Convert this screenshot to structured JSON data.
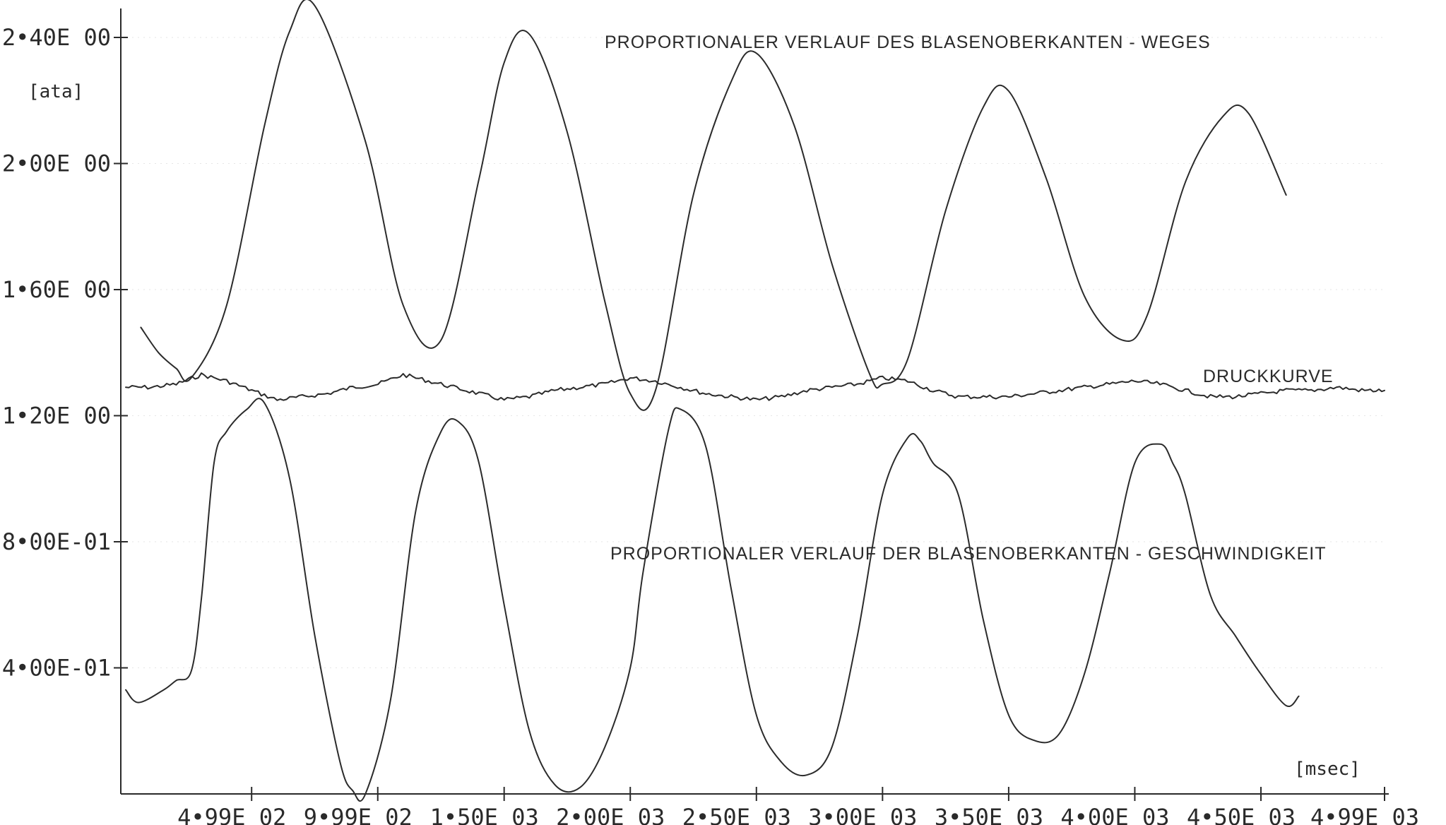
{
  "chart_data": {
    "type": "line",
    "title": "",
    "xlabel": "[msec]",
    "ylabel": "[ata]",
    "xlim": [
      0,
      4990
    ],
    "ylim": [
      0.0,
      2.5
    ],
    "grid": false,
    "x_ticks": [
      {
        "value": 499,
        "label": "4•99E 02"
      },
      {
        "value": 999,
        "label": "9•99E 02"
      },
      {
        "value": 1500,
        "label": "1•50E 03"
      },
      {
        "value": 2000,
        "label": "2•00E 03"
      },
      {
        "value": 2500,
        "label": "2•50E 03"
      },
      {
        "value": 3000,
        "label": "3•00E 03"
      },
      {
        "value": 3500,
        "label": "3•50E 03"
      },
      {
        "value": 4000,
        "label": "4•00E 03"
      },
      {
        "value": 4500,
        "label": "4•50E 03"
      },
      {
        "value": 4990,
        "label": "4•99E 03"
      }
    ],
    "y_ticks": [
      {
        "value": 0.4,
        "label": "4•00E-01"
      },
      {
        "value": 0.8,
        "label": "8•00E-01"
      },
      {
        "value": 1.2,
        "label": "1•20E 00"
      },
      {
        "value": 1.6,
        "label": "1•60E 00"
      },
      {
        "value": 2.0,
        "label": "2•00E 00"
      },
      {
        "value": 2.4,
        "label": "2•40E 00"
      }
    ],
    "annotations": [
      {
        "id": "weges",
        "text": "PROPORTIONALER VERLAUF DES BLASENOBERKANTEN - WEGES"
      },
      {
        "id": "druck",
        "text": "DRUCKKURVE"
      },
      {
        "id": "geschw",
        "text": "PROPORTIONALER VERLAUF DER BLASENOBERKANTEN - GESCHWINDIGKEIT"
      }
    ],
    "series": [
      {
        "id": "weges",
        "x": [
          60,
          130,
          200,
          260,
          400,
          550,
          650,
          750,
          950,
          1100,
          1250,
          1400,
          1500,
          1600,
          1750,
          1900,
          2000,
          2100,
          2250,
          2400,
          2500,
          2650,
          2800,
          2950,
          3000,
          3100,
          3250,
          3400,
          3500,
          3650,
          3800,
          3950,
          4050,
          4200,
          4350,
          4450,
          4600
        ],
        "values": [
          1.48,
          1.4,
          1.35,
          1.32,
          1.55,
          2.12,
          2.42,
          2.5,
          2.07,
          1.55,
          1.44,
          1.95,
          2.32,
          2.41,
          2.1,
          1.56,
          1.27,
          1.28,
          1.9,
          2.26,
          2.35,
          2.12,
          1.68,
          1.33,
          1.3,
          1.38,
          1.85,
          2.18,
          2.23,
          1.95,
          1.58,
          1.44,
          1.52,
          1.94,
          2.15,
          2.16,
          1.9
        ]
      },
      {
        "id": "druckkurve",
        "x": [
          0,
          100,
          200,
          300,
          400,
          500,
          600,
          700,
          800,
          900,
          1000,
          1100,
          1200,
          1300,
          1400,
          1500,
          1600,
          1700,
          1800,
          1900,
          2000,
          2100,
          2200,
          2300,
          2400,
          2500,
          2600,
          2700,
          2800,
          2900,
          3000,
          3100,
          3200,
          3300,
          3400,
          3500,
          3600,
          3700,
          3800,
          3900,
          4000,
          4100,
          4200,
          4300,
          4400,
          4500,
          4600,
          4700,
          4800,
          4900,
          4990
        ],
        "values": [
          1.29,
          1.29,
          1.3,
          1.33,
          1.31,
          1.28,
          1.25,
          1.26,
          1.27,
          1.29,
          1.3,
          1.33,
          1.31,
          1.29,
          1.27,
          1.25,
          1.26,
          1.28,
          1.29,
          1.3,
          1.32,
          1.31,
          1.29,
          1.27,
          1.26,
          1.25,
          1.26,
          1.28,
          1.29,
          1.3,
          1.32,
          1.31,
          1.28,
          1.26,
          1.26,
          1.26,
          1.27,
          1.28,
          1.29,
          1.3,
          1.31,
          1.3,
          1.28,
          1.26,
          1.26,
          1.27,
          1.28,
          1.28,
          1.29,
          1.28,
          1.28
        ]
      },
      {
        "id": "geschwindigkeit",
        "x": [
          0,
          50,
          150,
          200,
          260,
          300,
          350,
          400,
          480,
          550,
          650,
          750,
          850,
          900,
          950,
          1050,
          1150,
          1250,
          1320,
          1400,
          1500,
          1600,
          1700,
          1800,
          1900,
          2000,
          2050,
          2150,
          2200,
          2300,
          2400,
          2500,
          2600,
          2700,
          2800,
          2900,
          3000,
          3100,
          3150,
          3200,
          3300,
          3400,
          3500,
          3600,
          3700,
          3800,
          3900,
          4000,
          4100,
          4150,
          4200,
          4300,
          4400,
          4500,
          4600,
          4650
        ],
        "values": [
          0.33,
          0.29,
          0.33,
          0.36,
          0.39,
          0.62,
          1.05,
          1.15,
          1.22,
          1.24,
          1.0,
          0.5,
          0.1,
          0.01,
          0.0,
          0.3,
          0.9,
          1.15,
          1.18,
          1.05,
          0.6,
          0.2,
          0.03,
          0.02,
          0.15,
          0.4,
          0.7,
          1.15,
          1.22,
          1.1,
          0.65,
          0.25,
          0.1,
          0.06,
          0.15,
          0.5,
          0.95,
          1.13,
          1.12,
          1.05,
          0.95,
          0.55,
          0.25,
          0.17,
          0.19,
          0.38,
          0.7,
          1.05,
          1.11,
          1.05,
          0.95,
          0.63,
          0.5,
          0.38,
          0.28,
          0.31
        ]
      }
    ]
  }
}
